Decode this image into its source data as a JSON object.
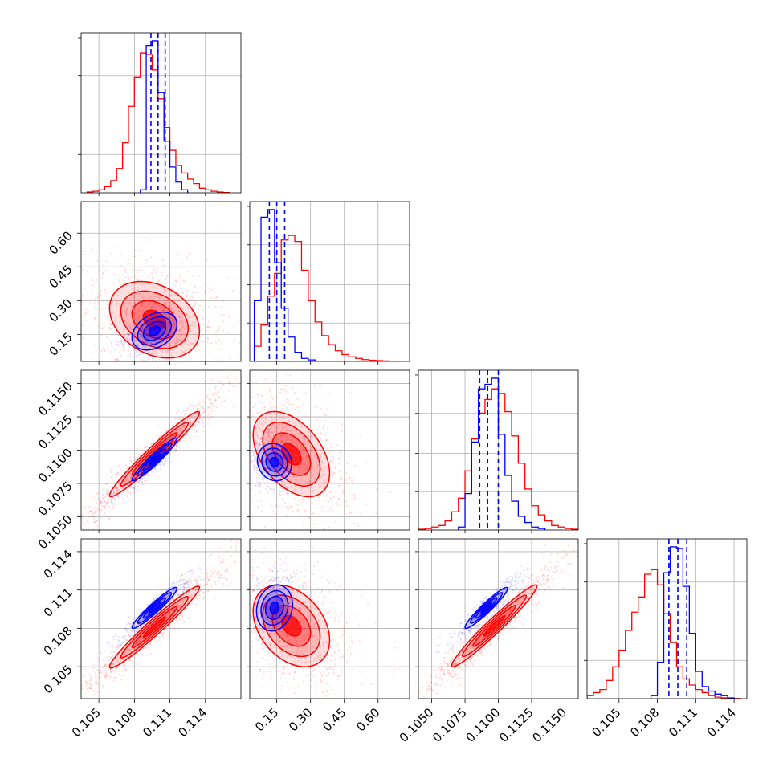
{
  "colors": {
    "blue": "#0000ff",
    "red": "#ff0000",
    "grid": "#b0b0b0"
  },
  "chart_data": {
    "type": "corner",
    "grid": true,
    "series": [
      {
        "color": "#0000ff"
      },
      {
        "color": "#ff0000"
      }
    ],
    "parameters": [
      {
        "range": [
          0.1035,
          0.117
        ],
        "ticks": [
          0.105,
          0.108,
          0.111,
          0.114
        ],
        "tick_labels": [
          "0.105",
          "0.108",
          "0.111",
          "0.114"
        ]
      },
      {
        "range": [
          0.03,
          0.74
        ],
        "ticks": [
          0.15,
          0.3,
          0.45,
          0.6
        ],
        "tick_labels": [
          "0.15",
          "0.30",
          "0.45",
          "0.60"
        ]
      },
      {
        "range": [
          0.104,
          0.116
        ],
        "ticks": [
          0.105,
          0.1075,
          0.11,
          0.1125,
          0.115
        ],
        "tick_labels": [
          "0.1050",
          "0.1075",
          "0.1100",
          "0.1125",
          "0.1150"
        ]
      },
      {
        "range": [
          0.1025,
          0.115
        ],
        "ticks": [
          0.105,
          0.108,
          0.111,
          0.114
        ],
        "tick_labels": [
          "0.105",
          "0.108",
          "0.111",
          "0.114"
        ]
      }
    ],
    "marginals": [
      {
        "param": 0,
        "blue": {
          "edges": [
            0.1085,
            0.109,
            0.1095,
            0.11,
            0.1105,
            0.111,
            0.1115,
            0.112,
            0.1125
          ],
          "counts": [
            0.02,
            0.97,
            1.0,
            0.66,
            0.34,
            0.17,
            0.07,
            0.02
          ]
        },
        "red": {
          "edges": [
            0.104,
            0.1045,
            0.105,
            0.1055,
            0.106,
            0.1065,
            0.107,
            0.1075,
            0.108,
            0.1085,
            0.109,
            0.1095,
            0.11,
            0.1105,
            0.111,
            0.1115,
            0.112,
            0.1125,
            0.113,
            0.1135,
            0.114,
            0.1145,
            0.115,
            0.1155,
            0.116
          ],
          "counts": [
            0.005,
            0.01,
            0.02,
            0.04,
            0.08,
            0.16,
            0.33,
            0.57,
            0.76,
            0.92,
            0.91,
            0.81,
            0.62,
            0.43,
            0.28,
            0.18,
            0.13,
            0.09,
            0.06,
            0.03,
            0.02,
            0.01,
            0.005,
            0.002
          ]
        },
        "quantiles": [
          0.1094,
          0.11,
          0.1106
        ]
      },
      {
        "param": 1,
        "blue": {
          "edges": [
            0.05,
            0.08,
            0.11,
            0.14,
            0.17,
            0.2,
            0.23,
            0.26,
            0.29,
            0.32
          ],
          "counts": [
            0.4,
            0.95,
            1.0,
            0.65,
            0.35,
            0.16,
            0.06,
            0.02,
            0.01
          ]
        },
        "red": {
          "edges": [
            0.05,
            0.08,
            0.11,
            0.14,
            0.17,
            0.2,
            0.23,
            0.26,
            0.29,
            0.32,
            0.35,
            0.38,
            0.41,
            0.44,
            0.47,
            0.5,
            0.53,
            0.56,
            0.59,
            0.62,
            0.65,
            0.68,
            0.71,
            0.74
          ],
          "counts": [
            0.1,
            0.24,
            0.43,
            0.58,
            0.8,
            0.83,
            0.79,
            0.6,
            0.4,
            0.26,
            0.17,
            0.11,
            0.07,
            0.045,
            0.03,
            0.02,
            0.012,
            0.008,
            0.005,
            0.003,
            0.002,
            0.001,
            0.001
          ]
        },
        "quantiles": [
          0.117,
          0.15,
          0.185
        ]
      },
      {
        "param": 2,
        "blue": {
          "edges": [
            0.107,
            0.1075,
            0.108,
            0.1085,
            0.109,
            0.1095,
            0.11,
            0.1105,
            0.111,
            0.1115,
            0.112,
            0.1125,
            0.113,
            0.1135
          ],
          "counts": [
            0.02,
            0.24,
            0.58,
            0.93,
            0.96,
            1.0,
            0.63,
            0.36,
            0.19,
            0.09,
            0.05,
            0.02,
            0.01
          ]
        },
        "red": {
          "edges": [
            0.104,
            0.1045,
            0.105,
            0.1055,
            0.106,
            0.1065,
            0.107,
            0.1075,
            0.108,
            0.1085,
            0.109,
            0.1095,
            0.11,
            0.1105,
            0.111,
            0.1115,
            0.112,
            0.1125,
            0.113,
            0.1135,
            0.114,
            0.1145,
            0.115,
            0.1155,
            0.116
          ],
          "counts": [
            0.005,
            0.01,
            0.02,
            0.03,
            0.06,
            0.12,
            0.21,
            0.39,
            0.6,
            0.77,
            0.86,
            0.93,
            0.9,
            0.78,
            0.62,
            0.44,
            0.27,
            0.16,
            0.1,
            0.06,
            0.03,
            0.02,
            0.01,
            0.005
          ]
        },
        "quantiles": [
          0.1086,
          0.1092,
          0.11
        ]
      },
      {
        "param": 3,
        "blue": {
          "edges": [
            0.1075,
            0.108,
            0.1085,
            0.109,
            0.1095,
            0.11,
            0.1105,
            0.111,
            0.1115,
            0.112,
            0.1125,
            0.113,
            0.1135,
            0.114
          ],
          "counts": [
            0.02,
            0.24,
            0.83,
            1.0,
            0.99,
            0.74,
            0.43,
            0.18,
            0.08,
            0.05,
            0.03,
            0.02,
            0.005
          ]
        },
        "red": {
          "edges": [
            0.102,
            0.1025,
            0.103,
            0.1035,
            0.104,
            0.1045,
            0.105,
            0.1055,
            0.106,
            0.1065,
            0.107,
            0.1075,
            0.108,
            0.1085,
            0.109,
            0.1095,
            0.11,
            0.1105,
            0.111,
            0.1115,
            0.112,
            0.1125,
            0.113,
            0.1135,
            0.114,
            0.1145
          ],
          "counts": [
            0.005,
            0.02,
            0.04,
            0.06,
            0.12,
            0.21,
            0.32,
            0.45,
            0.57,
            0.67,
            0.82,
            0.85,
            0.75,
            0.56,
            0.37,
            0.21,
            0.13,
            0.09,
            0.06,
            0.04,
            0.02,
            0.01,
            0.005,
            0.002,
            0.001
          ]
        },
        "quantiles": [
          0.1089,
          0.1096,
          0.1103
        ]
      }
    ],
    "pairs": [
      {
        "x": 0,
        "y": 1,
        "blue": {
          "mean": [
            0.1097,
            0.165
          ],
          "sd": [
            0.00095,
            0.042
          ],
          "rho": 0.35
        },
        "red": {
          "mean": [
            0.1097,
            0.215
          ],
          "sd": [
            0.0019,
            0.085
          ],
          "rho": -0.3
        }
      },
      {
        "x": 0,
        "y": 2,
        "blue": {
          "mean": [
            0.1097,
            0.1093
          ],
          "sd": [
            0.00095,
            0.0008
          ],
          "rho": 0.95
        },
        "red": {
          "mean": [
            0.1097,
            0.1097
          ],
          "sd": [
            0.0019,
            0.0016
          ],
          "rho": 0.97
        }
      },
      {
        "x": 1,
        "y": 2,
        "blue": {
          "mean": [
            0.14,
            0.1091
          ],
          "sd": [
            0.038,
            0.0007
          ],
          "rho": -0.1
        },
        "red": {
          "mean": [
            0.215,
            0.1097
          ],
          "sd": [
            0.085,
            0.0016
          ],
          "rho": -0.45
        }
      },
      {
        "x": 0,
        "y": 3,
        "blue": {
          "mean": [
            0.1097,
            0.1096
          ],
          "sd": [
            0.00095,
            0.0008
          ],
          "rho": 0.95
        },
        "red": {
          "mean": [
            0.1097,
            0.1081
          ],
          "sd": [
            0.0019,
            0.0016
          ],
          "rho": 0.97
        }
      },
      {
        "x": 1,
        "y": 3,
        "blue": {
          "mean": [
            0.14,
            0.1096
          ],
          "sd": [
            0.04,
            0.0009
          ],
          "rho": 0.15
        },
        "red": {
          "mean": [
            0.215,
            0.1082
          ],
          "sd": [
            0.085,
            0.0016
          ],
          "rho": -0.35
        }
      },
      {
        "x": 2,
        "y": 3,
        "blue": {
          "mean": [
            0.1091,
            0.1096
          ],
          "sd": [
            0.0008,
            0.0008
          ],
          "rho": 0.95
        },
        "red": {
          "mean": [
            0.1097,
            0.1082
          ],
          "sd": [
            0.0016,
            0.0016
          ],
          "rho": 0.97
        }
      }
    ]
  }
}
